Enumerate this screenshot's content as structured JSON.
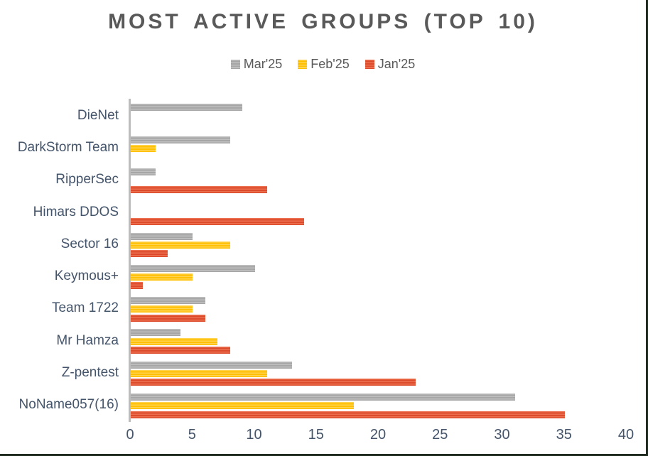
{
  "chart_data": {
    "type": "bar",
    "orientation": "horizontal",
    "title": "MOST ACTIVE GROUPS (TOP 10)",
    "categories": [
      "DieNet",
      "DarkStorm Team",
      "RipperSec",
      "Himars DDOS",
      "Sector 16",
      "Keymous+",
      "Team 1722",
      "Mr Hamza",
      "Z-pentest",
      "NoName057(16)"
    ],
    "series": [
      {
        "name": "Mar'25",
        "color": "#a6a6a6",
        "color_light": "#bfbfbf",
        "values": [
          9,
          8,
          2,
          0,
          5,
          10,
          6,
          4,
          13,
          31
        ]
      },
      {
        "name": "Feb'25",
        "color": "#ffc000",
        "color_light": "#ffd452",
        "values": [
          0,
          2,
          0,
          0,
          8,
          5,
          5,
          7,
          11,
          18
        ]
      },
      {
        "name": "Jan'25",
        "color": "#dd4b2d",
        "color_light": "#ec7050",
        "values": [
          0,
          0,
          11,
          14,
          3,
          1,
          6,
          8,
          23,
          35
        ]
      }
    ],
    "x_ticks": [
      0,
      5,
      10,
      15,
      20,
      25,
      30,
      35,
      40
    ],
    "xlim": [
      0,
      40
    ],
    "legend_position": "top-center",
    "grid": false,
    "colors": {
      "title_text": "#595959",
      "legend_text": "#595959",
      "axis_label_text": "#44546a",
      "axis_line": "#bcbcbc",
      "frame_border": "#1f2b1e"
    }
  }
}
